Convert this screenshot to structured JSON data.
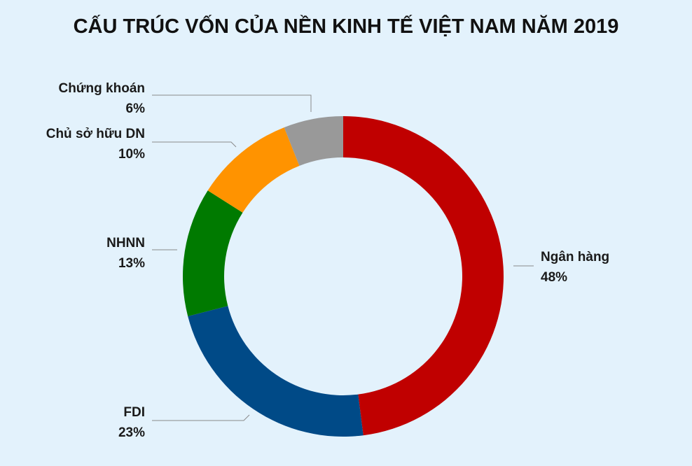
{
  "chart_data": {
    "type": "pie",
    "title": "CẤU TRÚC VỐN CỦA NỀN KINH TẾ VIỆT NAM NĂM 2019",
    "slices": [
      {
        "label": "Ngân hàng",
        "value": 48,
        "value_label": "48%",
        "color": "#c00000"
      },
      {
        "label": "FDI",
        "value": 23,
        "value_label": "23%",
        "color": "#004a87"
      },
      {
        "label": "NHNN",
        "value": 13,
        "value_label": "13%",
        "color": "#007a00"
      },
      {
        "label": "Chủ sở hữu DN",
        "value": 10,
        "value_label": "10%",
        "color": "#ff9300"
      },
      {
        "label": "Chứng khoán",
        "value": 6,
        "value_label": "6%",
        "color": "#999999"
      }
    ],
    "legend": "none"
  }
}
